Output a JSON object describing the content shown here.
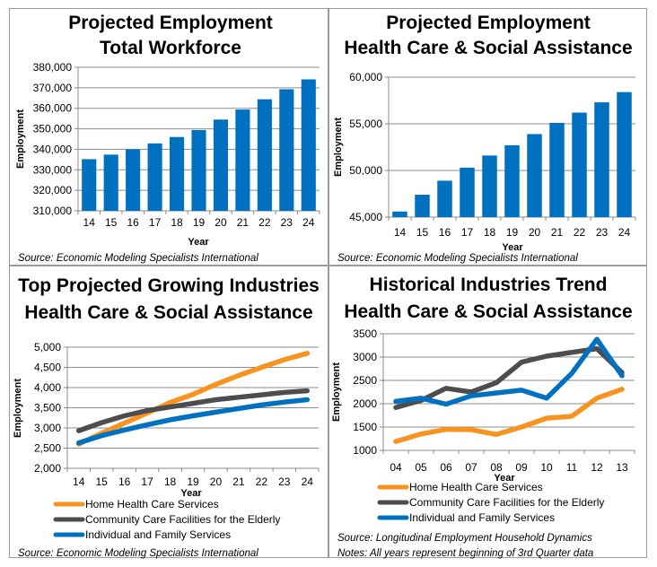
{
  "colors": {
    "bar": "#0070C0",
    "orange": "#F7931E",
    "gray": "#4D4D4F",
    "blue": "#0070C0"
  },
  "chart_data": [
    {
      "id": "total-workforce",
      "type": "bar",
      "title": [
        "Projected Employment",
        "Total Workforce"
      ],
      "xlabel": "Year",
      "ylabel": "Employment",
      "categories": [
        "14",
        "15",
        "16",
        "17",
        "18",
        "19",
        "20",
        "21",
        "22",
        "23",
        "24"
      ],
      "values": [
        335200,
        337400,
        340000,
        342900,
        346000,
        349400,
        354500,
        359400,
        364400,
        369300,
        374100
      ],
      "ylim": [
        310000,
        380000
      ],
      "yticks": [
        310000,
        320000,
        330000,
        340000,
        350000,
        360000,
        370000,
        380000
      ],
      "ytick_labels": [
        "310,000",
        "320,000",
        "330,000",
        "340,000",
        "350,000",
        "360,000",
        "370,000",
        "380,000"
      ],
      "grid": true,
      "source": "Source: Economic Modeling Specialists International"
    },
    {
      "id": "health-care-employment",
      "type": "bar",
      "title": [
        "Projected Employment",
        "Health Care & Social Assistance"
      ],
      "xlabel": "Year",
      "ylabel": "Employment",
      "categories": [
        "14",
        "15",
        "16",
        "17",
        "18",
        "19",
        "20",
        "21",
        "22",
        "23",
        "24"
      ],
      "values": [
        45600,
        47400,
        48900,
        50300,
        51600,
        52700,
        53900,
        55100,
        56200,
        57300,
        58400
      ],
      "ylim": [
        45000,
        60000
      ],
      "yticks": [
        45000,
        50000,
        55000,
        60000
      ],
      "ytick_labels": [
        "45,000",
        "50,000",
        "55,000",
        "60,000"
      ],
      "grid": true,
      "source": "Source: Economic Modeling Specialists International"
    },
    {
      "id": "top-growing-industries",
      "type": "line",
      "title": [
        "Top Projected Growing Industries",
        "Health Care & Social Assistance"
      ],
      "xlabel": "Year",
      "ylabel": "Employment",
      "categories": [
        "14",
        "15",
        "16",
        "17",
        "18",
        "19",
        "20",
        "21",
        "22",
        "23",
        "24"
      ],
      "series": [
        {
          "name": "Home Health Care Services",
          "color_key": "orange",
          "values": [
            2600,
            2870,
            3120,
            3370,
            3630,
            3830,
            4080,
            4300,
            4500,
            4690,
            4850
          ]
        },
        {
          "name": "Community Care Facilities for the Elderly",
          "color_key": "gray",
          "values": [
            2930,
            3130,
            3300,
            3430,
            3520,
            3610,
            3700,
            3760,
            3820,
            3880,
            3920
          ]
        },
        {
          "name": "Individual and Family Services",
          "color_key": "blue",
          "values": [
            2630,
            2810,
            2950,
            3080,
            3200,
            3300,
            3390,
            3480,
            3570,
            3640,
            3700
          ]
        }
      ],
      "ylim": [
        2000,
        5000
      ],
      "yticks": [
        2000,
        2500,
        3000,
        3500,
        4000,
        4500,
        5000
      ],
      "ytick_labels": [
        "2,000",
        "2,500",
        "3,000",
        "3,500",
        "4,000",
        "4,500",
        "5,000"
      ],
      "grid": true,
      "legend": "bottom",
      "source": "Source: Economic Modeling Specialists International"
    },
    {
      "id": "historical-trend",
      "type": "line",
      "title": [
        "Historical Industries Trend",
        "Health Care & Social Assistance"
      ],
      "xlabel": "Year",
      "ylabel": "Employment",
      "categories": [
        "04",
        "05",
        "06",
        "07",
        "08",
        "09",
        "10",
        "11",
        "12",
        "13"
      ],
      "series": [
        {
          "name": "Home Health Care Services",
          "color_key": "orange",
          "values": [
            1190,
            1350,
            1450,
            1445,
            1340,
            1500,
            1690,
            1730,
            2120,
            2310
          ]
        },
        {
          "name": "Community Care Facilities for the Elderly",
          "color_key": "gray",
          "values": [
            1920,
            2070,
            2330,
            2250,
            2450,
            2890,
            3020,
            3100,
            3180,
            2670
          ]
        },
        {
          "name": "Individual and Family Services",
          "color_key": "blue",
          "values": [
            2050,
            2120,
            1990,
            2170,
            2230,
            2290,
            2120,
            2650,
            3380,
            2600
          ]
        }
      ],
      "ylim": [
        1000,
        3500
      ],
      "yticks": [
        1000,
        1500,
        2000,
        2500,
        3000,
        3500
      ],
      "ytick_labels": [
        "1000",
        "1500",
        "2000",
        "2500",
        "3000",
        "3500"
      ],
      "grid": true,
      "legend": "bottom",
      "source": "Source: Longitudinal Employment Household Dynamics",
      "notes": "Notes: All years represent beginning of 3rd Quarter data"
    }
  ]
}
